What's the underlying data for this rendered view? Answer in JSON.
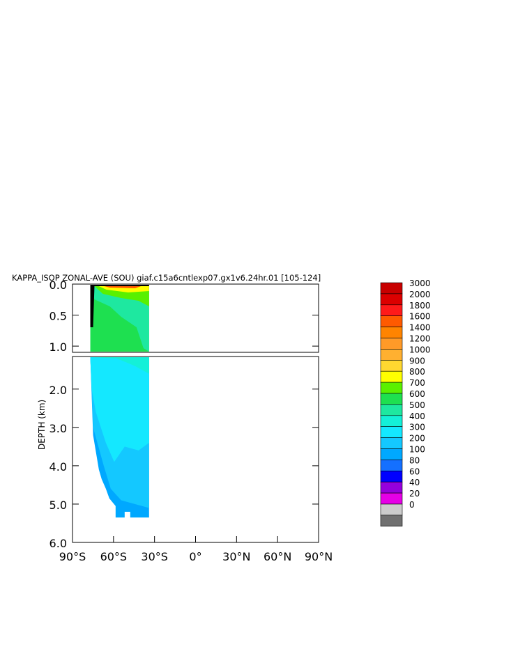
{
  "chart_data": {
    "type": "heatmap",
    "title": "KAPPA_ISOP ZONAL-AVE (SOU) giaf.c15a6cntlexp07.gx1v6.24hr.01  [105-124]",
    "ylabel": "DEPTH (km)",
    "xlabel": "",
    "x_ticks": [
      "90°S",
      "60°S",
      "30°S",
      "0°",
      "30°N",
      "60°N",
      "90°N"
    ],
    "x_tick_values": [
      -90,
      -60,
      -30,
      0,
      30,
      60,
      90
    ],
    "xlim": [
      -90,
      90
    ],
    "upper_panel": {
      "ylim": [
        0,
        1.1
      ],
      "y_ticks": [
        "0.0",
        "0.5",
        "1.0"
      ],
      "y_tick_values": [
        0,
        0.5,
        1.0
      ]
    },
    "lower_panel": {
      "ylim": [
        1.15,
        6.0
      ],
      "y_ticks": [
        "2.0",
        "3.0",
        "4.0",
        "5.0",
        "6.0"
      ],
      "y_tick_values": [
        2,
        3,
        4,
        5,
        6
      ]
    },
    "data_extent_lat": [
      -78,
      -34
    ],
    "colorbar": {
      "labels": [
        "3000",
        "2000",
        "1800",
        "1600",
        "1400",
        "1200",
        "1000",
        "900",
        "800",
        "700",
        "600",
        "500",
        "400",
        "300",
        "200",
        "100",
        "80",
        "60",
        "40",
        "20",
        "0"
      ],
      "colors": [
        "#c80000",
        "#dc0000",
        "#ff1a1a",
        "#ff5a00",
        "#ff8400",
        "#ff9a28",
        "#ffb030",
        "#ffd830",
        "#ffff00",
        "#5af000",
        "#1ee050",
        "#1ee8a0",
        "#14f0d8",
        "#14e8ff",
        "#14c8ff",
        "#00a8ff",
        "#1470ff",
        "#0000ff",
        "#9600dc",
        "#e600e6",
        "#cccccc",
        "#707070"
      ]
    }
  }
}
